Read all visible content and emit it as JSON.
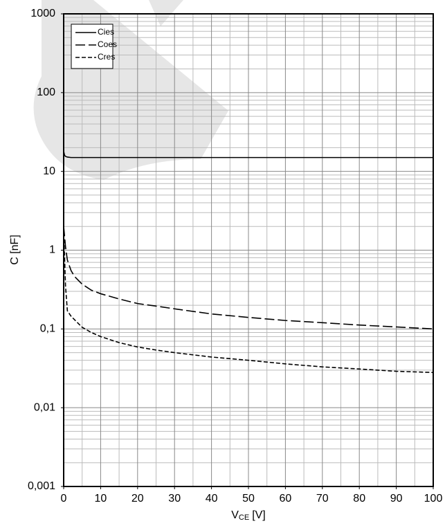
{
  "chart_data": {
    "type": "line",
    "y_label": "C [nF]",
    "x_label": [
      "V",
      "CE",
      "[V]"
    ],
    "log_y": true,
    "grid": true,
    "legend": "upper-left",
    "x": [
      0,
      0.25,
      0.5,
      1,
      2,
      3,
      5,
      7.5,
      10,
      15,
      20,
      25,
      30,
      40,
      50,
      60,
      70,
      80,
      90,
      100
    ],
    "series": [
      {
        "name": "Cies",
        "color": "#000000",
        "dash": "none",
        "values": [
          18,
          16,
          15.5,
          15.2,
          15,
          15,
          15,
          15,
          15,
          15,
          15,
          15,
          15,
          15,
          15,
          15,
          15,
          15,
          15,
          15
        ]
      },
      {
        "name": "Coes",
        "color": "#000000",
        "dash": "14 5",
        "values": [
          2,
          1.5,
          1.1,
          0.75,
          0.55,
          0.46,
          0.37,
          0.31,
          0.28,
          0.24,
          0.21,
          0.195,
          0.18,
          0.155,
          0.14,
          0.128,
          0.12,
          0.112,
          0.106,
          0.1
        ]
      },
      {
        "name": "Cres",
        "color": "#000000",
        "dash": "6 3",
        "values": [
          2,
          0.8,
          0.35,
          0.17,
          0.145,
          0.13,
          0.105,
          0.09,
          0.08,
          0.067,
          0.059,
          0.054,
          0.05,
          0.044,
          0.04,
          0.036,
          0.033,
          0.031,
          0.029,
          0.028
        ]
      }
    ],
    "xlim": [
      0,
      100
    ],
    "xticks": [
      0,
      10,
      20,
      30,
      40,
      50,
      60,
      70,
      80,
      90,
      100
    ],
    "ylim": [
      0.001,
      1000
    ],
    "yticks": [
      {
        "value": 0.001,
        "label": "0,001"
      },
      {
        "value": 0.01,
        "label": "0,01"
      },
      {
        "value": 0.1,
        "label": "0,1"
      },
      1,
      10,
      100,
      1000
    ]
  }
}
